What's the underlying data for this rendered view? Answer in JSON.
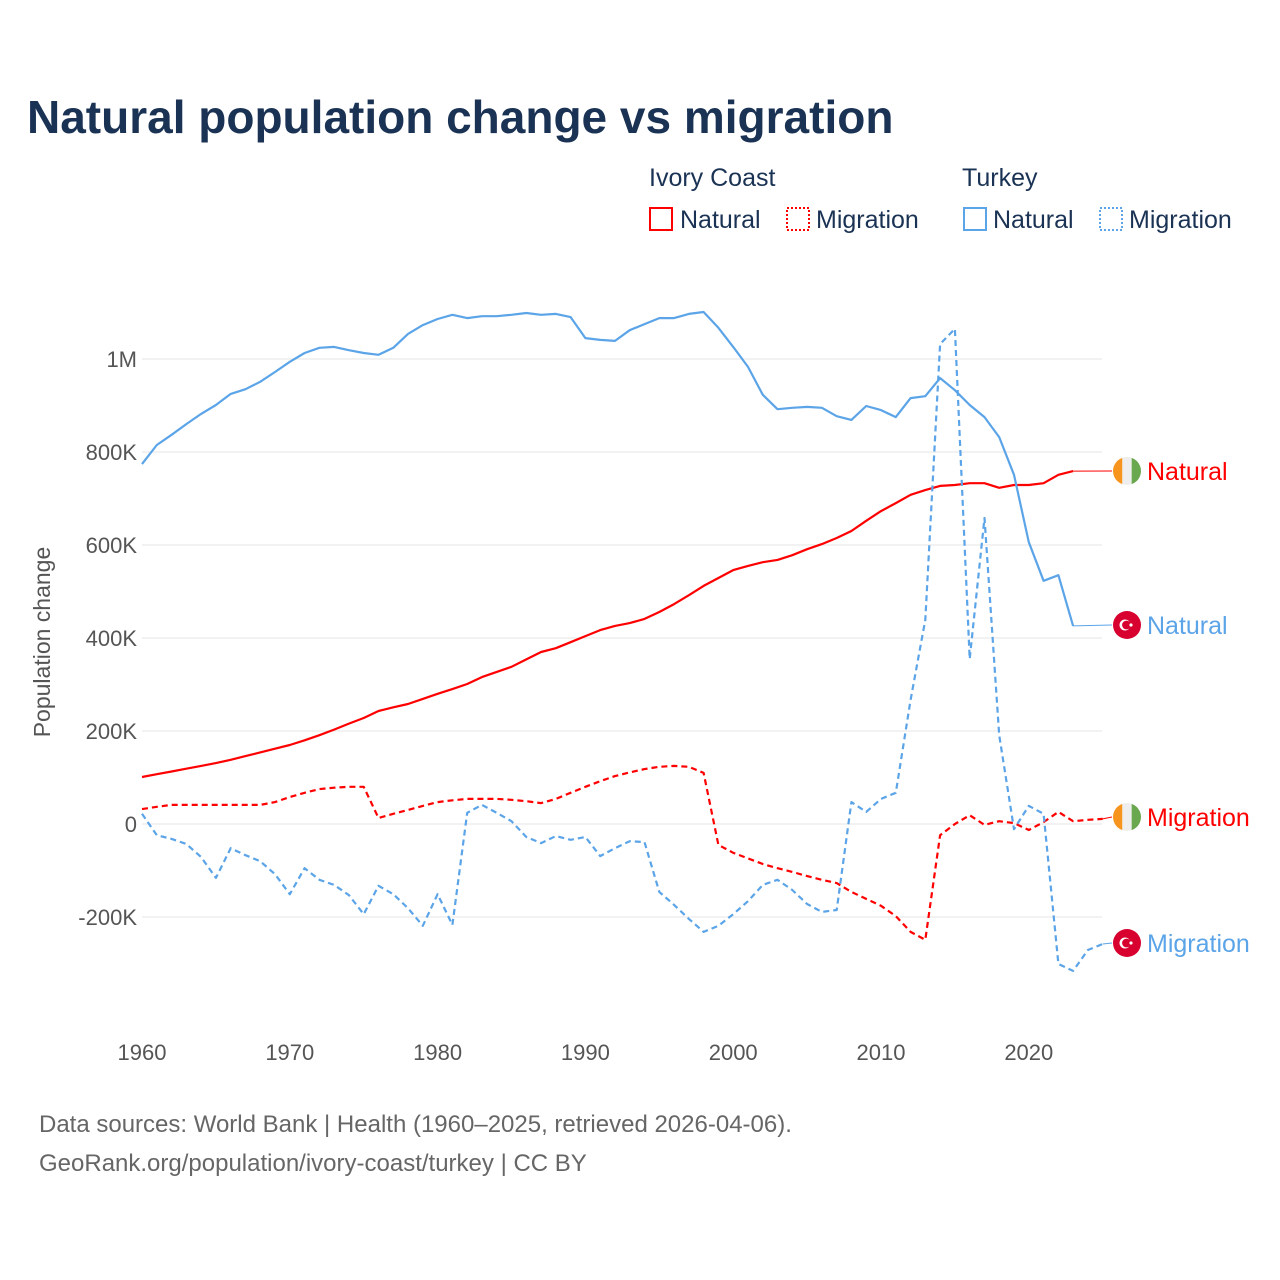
{
  "chart_data": {
    "type": "line",
    "title": "Natural population change vs migration",
    "xlabel": "",
    "ylabel": "Population change",
    "xlim": [
      1960,
      2025
    ],
    "ylim": [
      -400000,
      1150000
    ],
    "x_ticks": [
      1960,
      1970,
      1980,
      1990,
      2000,
      2010,
      2020
    ],
    "x_tick_labels": [
      "1960",
      "1970",
      "1980",
      "1990",
      "2000",
      "2010",
      "2020"
    ],
    "y_ticks": [
      -200000,
      0,
      200000,
      400000,
      600000,
      800000,
      1000000
    ],
    "y_tick_labels": [
      "-200K",
      "0",
      "200K",
      "400K",
      "600K",
      "800K",
      "1M"
    ],
    "grid": true,
    "legend": {
      "placement": "top-right",
      "groups": [
        {
          "country": "Ivory Coast",
          "items": [
            "Natural",
            "Migration"
          ]
        },
        {
          "country": "Turkey",
          "items": [
            "Natural",
            "Migration"
          ]
        }
      ]
    },
    "series": [
      {
        "name": "Ivory Coast Natural",
        "country": "Ivory Coast",
        "kind": "Natural",
        "label": "Natural",
        "color": "#ff0000",
        "dash": false,
        "flag": "ivory-coast",
        "start_year": 1960,
        "unit": "thousands",
        "values": [
          101,
          107,
          113,
          119,
          125,
          131,
          138,
          146,
          154,
          162,
          170,
          180,
          191,
          203,
          216,
          228,
          243,
          251,
          258,
          269,
          280,
          290,
          301,
          316,
          327,
          338,
          354,
          370,
          378,
          391,
          404,
          417,
          426,
          432,
          441,
          456,
          473,
          492,
          512,
          529,
          546,
          555,
          563,
          568,
          578,
          591,
          602,
          615,
          630,
          652,
          673,
          690,
          708,
          718,
          727,
          729,
          733,
          733,
          723,
          729,
          729,
          733,
          751,
          759
        ]
      },
      {
        "name": "Ivory Coast Migration",
        "country": "Ivory Coast",
        "kind": "Migration",
        "label": "Migration",
        "color": "#ff0000",
        "dash": true,
        "flag": "ivory-coast",
        "start_year": 1960,
        "unit": "thousands",
        "values": [
          32,
          37,
          41,
          41,
          41,
          41,
          41,
          41,
          41,
          47,
          58,
          67,
          75,
          78,
          80,
          80,
          13,
          22,
          30,
          39,
          47,
          51,
          54,
          54,
          54,
          52,
          49,
          45,
          54,
          67,
          80,
          92,
          103,
          111,
          118,
          123,
          125,
          123,
          110,
          -45,
          -62,
          -74,
          -86,
          -95,
          -103,
          -112,
          -120,
          -127,
          -146,
          -161,
          -176,
          -198,
          -232,
          -249,
          -24,
          0,
          19,
          -2,
          6,
          2,
          -13,
          4,
          26,
          6,
          9,
          11
        ]
      },
      {
        "name": "Turkey Natural",
        "country": "Turkey",
        "kind": "Natural",
        "label": "Natural",
        "color": "#5ba4e8",
        "dash": false,
        "flag": "turkey",
        "start_year": 1960,
        "unit": "thousands",
        "values": [
          774,
          815,
          837,
          860,
          882,
          901,
          925,
          935,
          951,
          972,
          994,
          1013,
          1024,
          1026,
          1019,
          1013,
          1009,
          1024,
          1054,
          1073,
          1086,
          1095,
          1088,
          1092,
          1092,
          1095,
          1099,
          1095,
          1097,
          1090,
          1045,
          1041,
          1039,
          1062,
          1075,
          1088,
          1088,
          1097,
          1101,
          1067,
          1026,
          983,
          923,
          892,
          895,
          897,
          895,
          877,
          869,
          899,
          890,
          875,
          916,
          920,
          959,
          933,
          901,
          875,
          832,
          751,
          606,
          523,
          535,
          426
        ]
      },
      {
        "name": "Turkey Migration",
        "country": "Turkey",
        "kind": "Migration",
        "label": "Migration",
        "color": "#5ba4e8",
        "dash": true,
        "flag": "turkey",
        "start_year": 1960,
        "unit": "thousands",
        "values": [
          22,
          -24,
          -32,
          -43,
          -71,
          -116,
          -52,
          -67,
          -80,
          -108,
          -151,
          -95,
          -120,
          -131,
          -153,
          -194,
          -133,
          -151,
          -181,
          -219,
          -151,
          -217,
          24,
          41,
          24,
          6,
          -28,
          -41,
          -26,
          -34,
          -28,
          -69,
          -52,
          -37,
          -39,
          -146,
          -174,
          -204,
          -232,
          -219,
          -194,
          -166,
          -131,
          -120,
          -142,
          -172,
          -189,
          -185,
          47,
          26,
          54,
          67,
          267,
          439,
          1032,
          1065,
          355,
          658,
          191,
          -11,
          39,
          22,
          -301,
          -316,
          -271,
          -258
        ]
      }
    ]
  },
  "footer": {
    "source": "Data sources: World Bank | Health (1960–2025, retrieved 2026-04-06).",
    "link": "GeoRank.org/population/ivory-coast/turkey | CC BY"
  }
}
